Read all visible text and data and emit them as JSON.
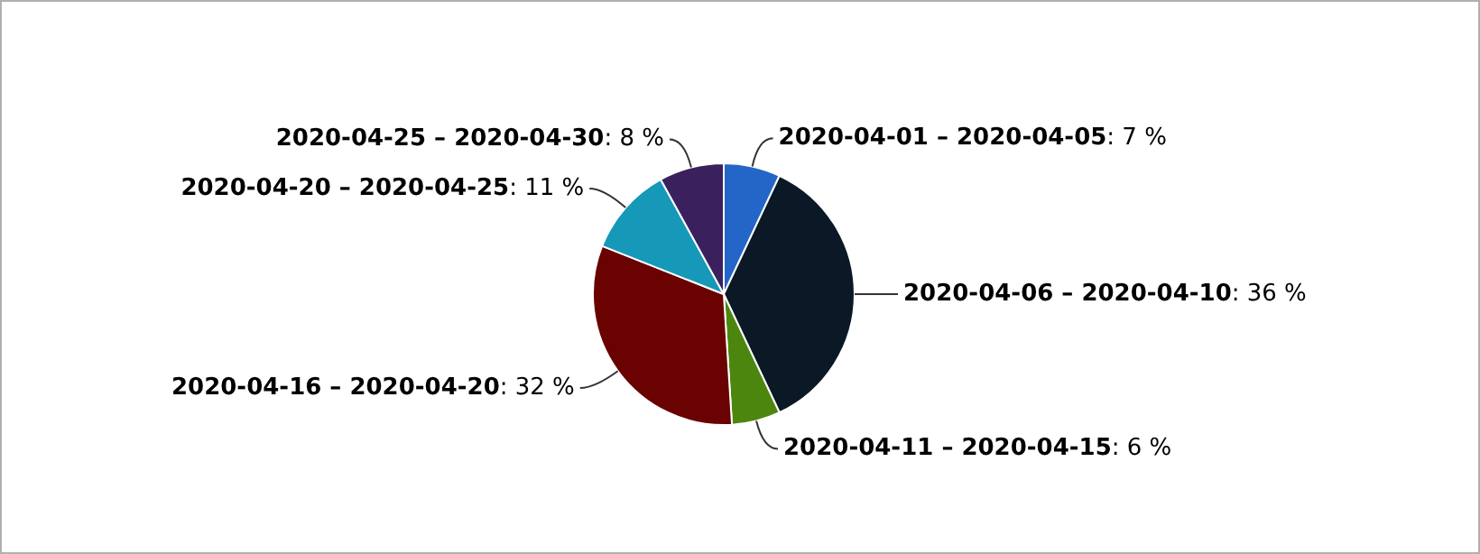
{
  "chart_data": {
    "type": "pie",
    "categories": [
      "2020-04-01 – 2020-04-05",
      "2020-04-06 – 2020-04-10",
      "2020-04-11 – 2020-04-15",
      "2020-04-16 – 2020-04-20",
      "2020-04-20 – 2020-04-25",
      "2020-04-25 – 2020-04-30"
    ],
    "values": [
      7,
      36,
      6,
      32,
      11,
      8
    ],
    "value_labels": [
      ": 7 %",
      ": 36 %",
      ": 6 %",
      ": 32 %",
      ": 11 %",
      ": 8 %"
    ],
    "colors": [
      "#2466c8",
      "#0b1826",
      "#4d860f",
      "#6a0202",
      "#1698b8",
      "#3a215e"
    ],
    "legend": false
  }
}
